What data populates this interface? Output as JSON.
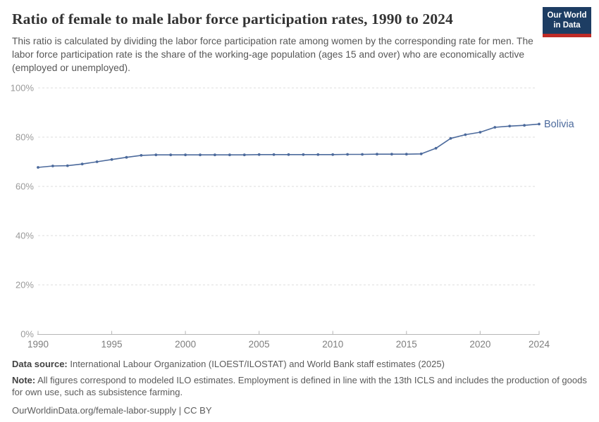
{
  "header": {
    "title": "Ratio of female to male labor force participation rates, 1990 to 2024",
    "subtitle": "This ratio is calculated by dividing the labor force participation rate among women by the corresponding rate for men. The labor force participation rate is the share of the working-age population (ages 15 and over) who are economically active (employed or unemployed).",
    "logo": {
      "line1": "Our World",
      "line2": "in Data",
      "bg_color": "#1d3d63",
      "accent_color": "#bf2b26"
    }
  },
  "chart_data": {
    "type": "line",
    "title": "Ratio of female to male labor force participation rates, 1990 to 2024",
    "xlabel": "",
    "ylabel": "",
    "xlim": [
      1990,
      2024
    ],
    "ylim": [
      0,
      100
    ],
    "grid": "horizontal-dashed",
    "legend_position": "end-of-line-label",
    "xticks": [
      1990,
      1995,
      2000,
      2005,
      2010,
      2015,
      2020,
      2024
    ],
    "yticks": [
      {
        "value": 0,
        "label": "0%"
      },
      {
        "value": 20,
        "label": "20%"
      },
      {
        "value": 40,
        "label": "40%"
      },
      {
        "value": 60,
        "label": "60%"
      },
      {
        "value": 80,
        "label": "80%"
      },
      {
        "value": 100,
        "label": "100%"
      }
    ],
    "series": [
      {
        "name": "Bolivia",
        "color": "#4c6a9c",
        "x": [
          1990,
          1991,
          1992,
          1993,
          1994,
          1995,
          1996,
          1997,
          1998,
          1999,
          2000,
          2001,
          2002,
          2003,
          2004,
          2005,
          2006,
          2007,
          2008,
          2009,
          2010,
          2011,
          2012,
          2013,
          2014,
          2015,
          2016,
          2017,
          2018,
          2019,
          2020,
          2021,
          2022,
          2023,
          2024
        ],
        "values": [
          67.7,
          68.3,
          68.4,
          69.1,
          70.0,
          70.9,
          71.8,
          72.6,
          72.8,
          72.8,
          72.8,
          72.8,
          72.8,
          72.8,
          72.8,
          72.9,
          72.9,
          72.9,
          72.9,
          72.9,
          72.9,
          73.0,
          73.0,
          73.1,
          73.1,
          73.1,
          73.2,
          75.5,
          79.5,
          81.0,
          82.0,
          84.0,
          84.5,
          84.8,
          85.3
        ]
      }
    ]
  },
  "footer": {
    "source_label": "Data source:",
    "source_text": " International Labour Organization (ILOEST/ILOSTAT) and World Bank staff estimates (2025)",
    "note_label": "Note:",
    "note_text": " All figures correspond to modeled ILO estimates. Employment is defined in line with the 13th ICLS and includes the production of goods for own use, such as subsistence farming.",
    "url": "OurWorldinData.org/female-labor-supply",
    "separator": "|",
    "license": "CC BY"
  }
}
